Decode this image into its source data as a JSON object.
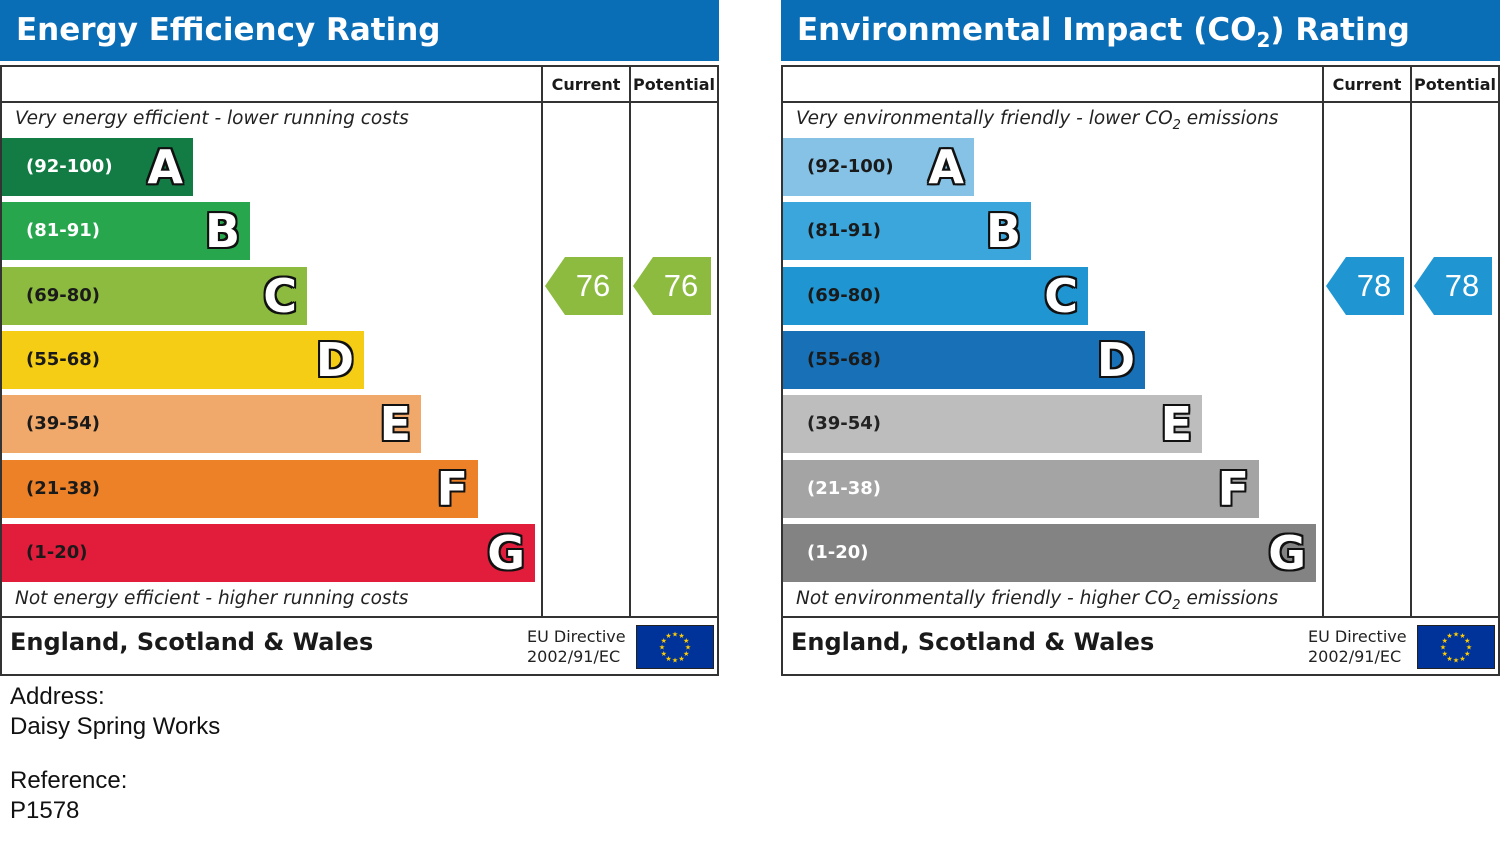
{
  "chart_data": [
    {
      "type": "bar",
      "title": "Energy Efficiency Rating",
      "column_headers": {
        "current": "Current",
        "potential": "Potential"
      },
      "top_note": "Very energy efficient - lower running costs",
      "bottom_note": "Not energy efficient - higher running costs",
      "bands": [
        {
          "range": "(92-100)",
          "letter": "A",
          "color": "#137c45"
        },
        {
          "range": "(81-91)",
          "letter": "B",
          "color": "#27a64d"
        },
        {
          "range": "(69-80)",
          "letter": "C",
          "color": "#8cbb40"
        },
        {
          "range": "(55-68)",
          "letter": "D",
          "color": "#f5cd15"
        },
        {
          "range": "(39-54)",
          "letter": "E",
          "color": "#f0a96b"
        },
        {
          "range": "(21-38)",
          "letter": "F",
          "color": "#ec8128"
        },
        {
          "range": "(1-20)",
          "letter": "G",
          "color": "#e21d3b"
        }
      ],
      "current": {
        "value": 76,
        "band": "C",
        "color": "#8cbb40"
      },
      "potential": {
        "value": 76,
        "band": "C",
        "color": "#8cbb40"
      },
      "region": "England, Scotland & Wales",
      "directive": [
        "EU Directive",
        "2002/91/EC"
      ]
    },
    {
      "type": "bar",
      "title": "Environmental Impact (CO2) Rating",
      "title_parts": {
        "pre": "Environmental Impact (CO",
        "sub": "2",
        "post": ") Rating"
      },
      "column_headers": {
        "current": "Current",
        "potential": "Potential"
      },
      "top_note": "Very environmentally friendly - lower CO2 emissions",
      "top_note_parts": {
        "pre": "Very environmentally friendly - lower CO",
        "sub": "2",
        "post": " emissions"
      },
      "bottom_note": "Not environmentally friendly - higher CO2 emissions",
      "bottom_note_parts": {
        "pre": "Not environmentally friendly - higher CO",
        "sub": "2",
        "post": " emissions"
      },
      "bands": [
        {
          "range": "(92-100)",
          "letter": "A",
          "color": "#85c2e6"
        },
        {
          "range": "(81-91)",
          "letter": "B",
          "color": "#3aa6db"
        },
        {
          "range": "(69-80)",
          "letter": "C",
          "color": "#1f95d2"
        },
        {
          "range": "(55-68)",
          "letter": "D",
          "color": "#1870b6"
        },
        {
          "range": "(39-54)",
          "letter": "E",
          "color": "#bdbdbd"
        },
        {
          "range": "(21-38)",
          "letter": "F",
          "color": "#a4a4a4"
        },
        {
          "range": "(1-20)",
          "letter": "G",
          "color": "#838383"
        }
      ],
      "current": {
        "value": 78,
        "band": "C",
        "color": "#1f95d2"
      },
      "potential": {
        "value": 78,
        "band": "C",
        "color": "#1f95d2"
      },
      "region": "England, Scotland & Wales",
      "directive": [
        "EU Directive",
        "2002/91/EC"
      ]
    }
  ],
  "address": {
    "label": "Address:",
    "value": "Daisy Spring Works"
  },
  "reference": {
    "label": "Reference:",
    "value": "P1578"
  }
}
